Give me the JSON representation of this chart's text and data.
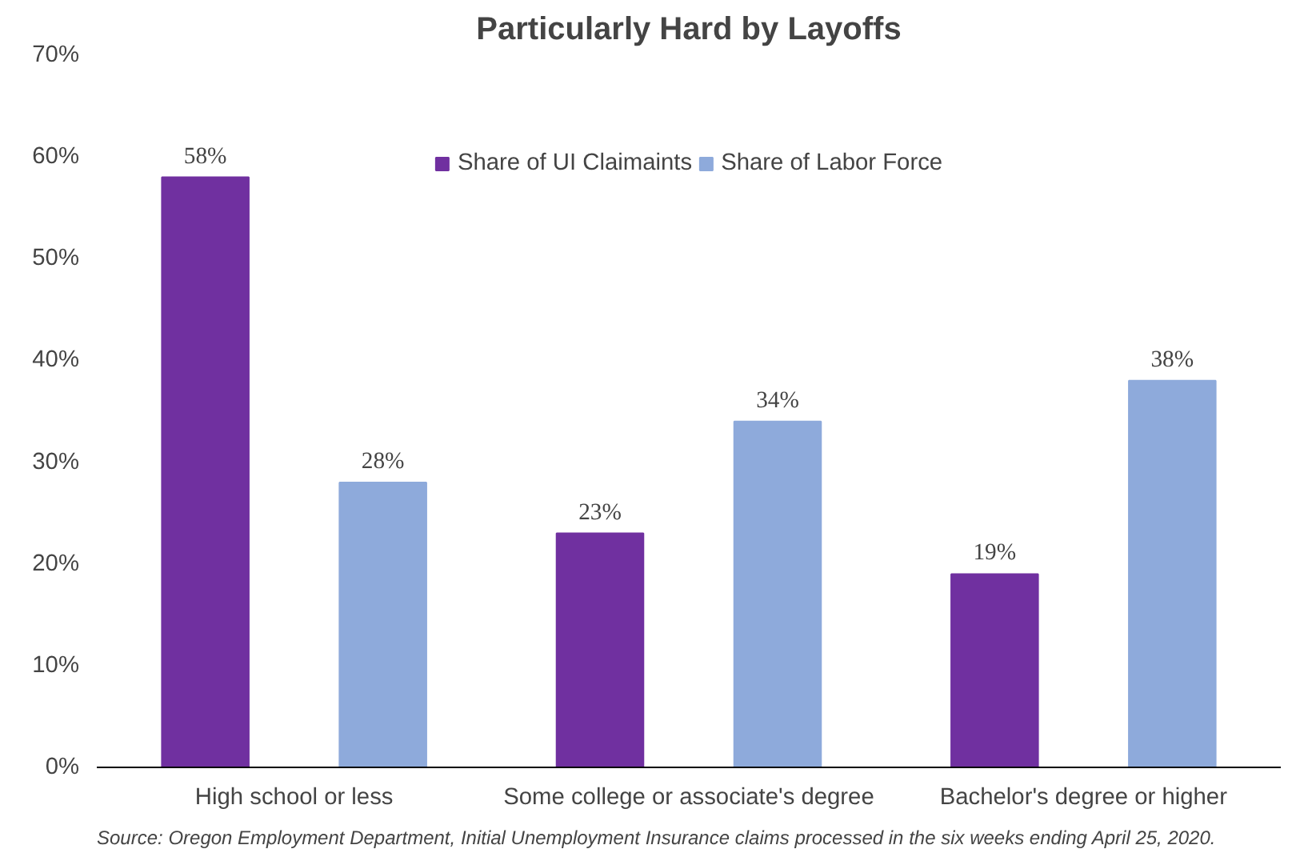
{
  "chart_data": {
    "type": "bar",
    "title": "Particularly Hard by Layoffs",
    "categories": [
      "High school or less",
      "Some college or associate's degree",
      "Bachelor's degree or higher"
    ],
    "series": [
      {
        "name": "Share of UI Claimaints",
        "color": "#7030a0",
        "values": [
          58,
          23,
          19
        ],
        "value_labels": [
          "58%",
          "23%",
          "19%"
        ]
      },
      {
        "name": "Share of Labor Force",
        "color": "#8eaadb",
        "values": [
          28,
          34,
          38
        ],
        "value_labels": [
          "28%",
          "34%",
          "38%"
        ]
      }
    ],
    "ylim": [
      0,
      70
    ],
    "yticks": [
      {
        "value": 0,
        "label": "0%"
      },
      {
        "value": 10,
        "label": "10%"
      },
      {
        "value": 20,
        "label": "20%"
      },
      {
        "value": 30,
        "label": "30%"
      },
      {
        "value": 40,
        "label": "40%"
      },
      {
        "value": 50,
        "label": "50%"
      },
      {
        "value": 60,
        "label": "60%"
      },
      {
        "value": 70,
        "label": "70%"
      }
    ],
    "grid": false,
    "legend": "top",
    "annotations": [
      "Source: Oregon Employment Department, Initial Unemployment Insurance claims processed in the six  weeks ending April 25, 2020."
    ]
  }
}
